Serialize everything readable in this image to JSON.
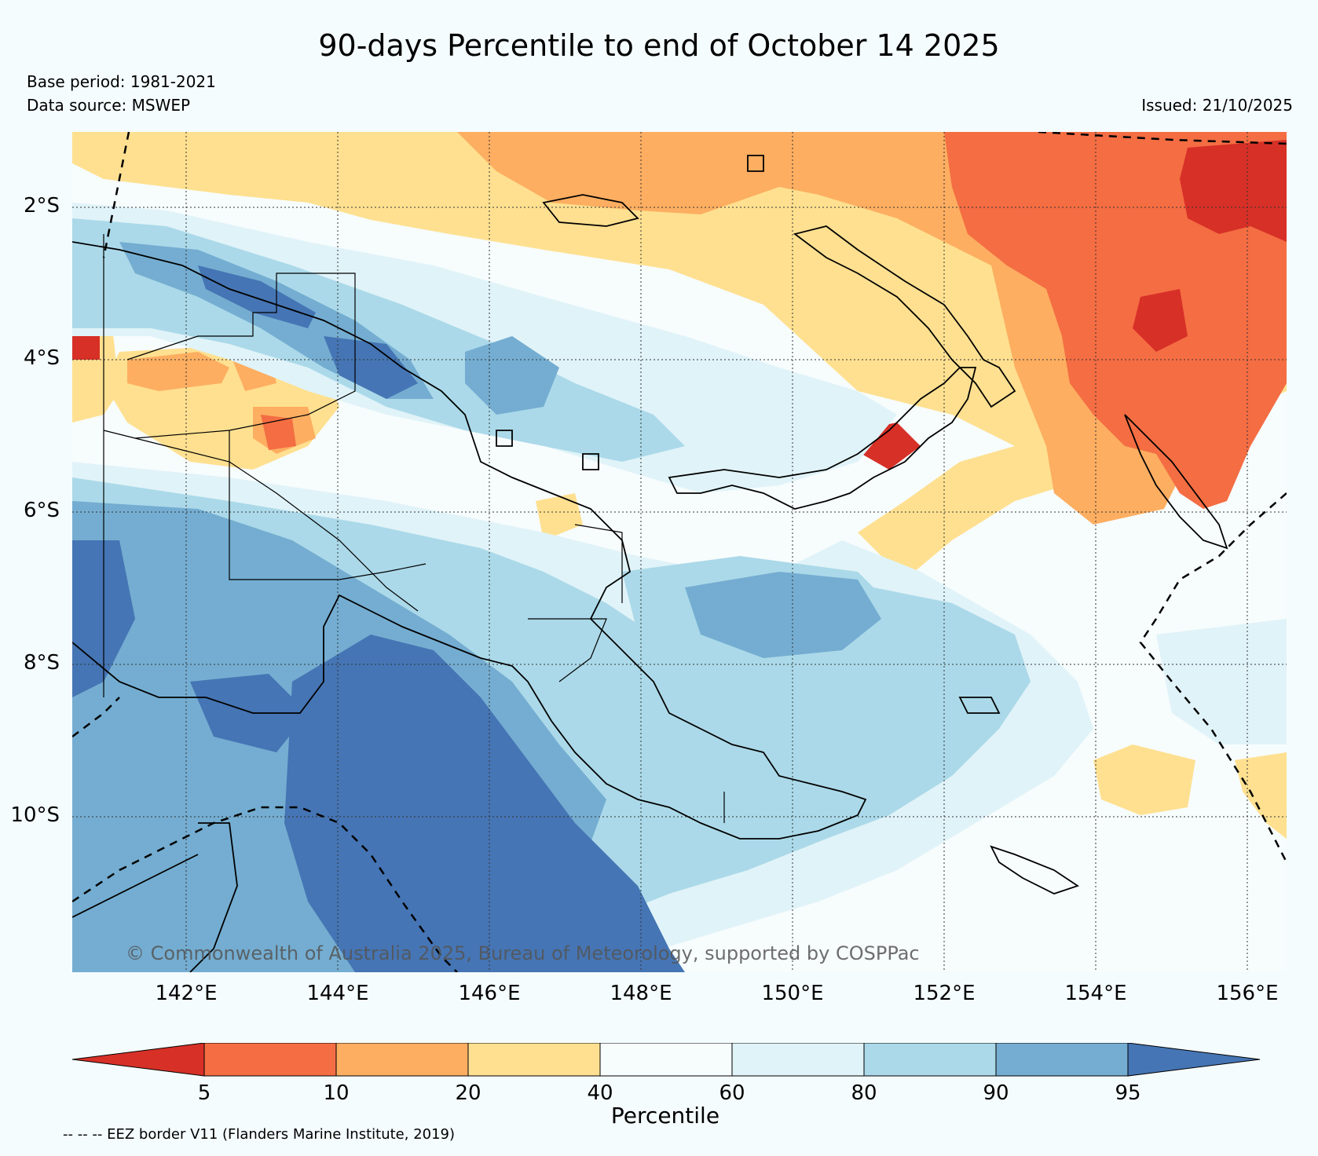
{
  "title": "90-days Percentile to end of October 14 2025",
  "base_period": "Base period: 1981-2021",
  "data_source": "Data source: MSWEP",
  "issued": "Issued: 21/10/2025",
  "copyright": "© Commonwealth of Australia 2025, Bureau of Meteorology, supported by COSPPac",
  "lat_labels": [
    "2°S",
    "4°S",
    "6°S",
    "8°S",
    "10°S"
  ],
  "lon_labels": [
    "142°E",
    "144°E",
    "146°E",
    "148°E",
    "150°E",
    "152°E",
    "154°E",
    "156°E"
  ],
  "colorbar": {
    "label": "Percentile",
    "ticks": [
      "5",
      "10",
      "20",
      "40",
      "60",
      "80",
      "90",
      "95"
    ],
    "colors": [
      "#d73027",
      "#f46d43",
      "#fdae61",
      "#fee090",
      "#f7fcfd",
      "#e0f3f8",
      "#abd9e9",
      "#74add1",
      "#4575b4"
    ]
  },
  "eez_note": "-- -- -- EEZ border V11 (Flanders Marine Institute, 2019)"
}
